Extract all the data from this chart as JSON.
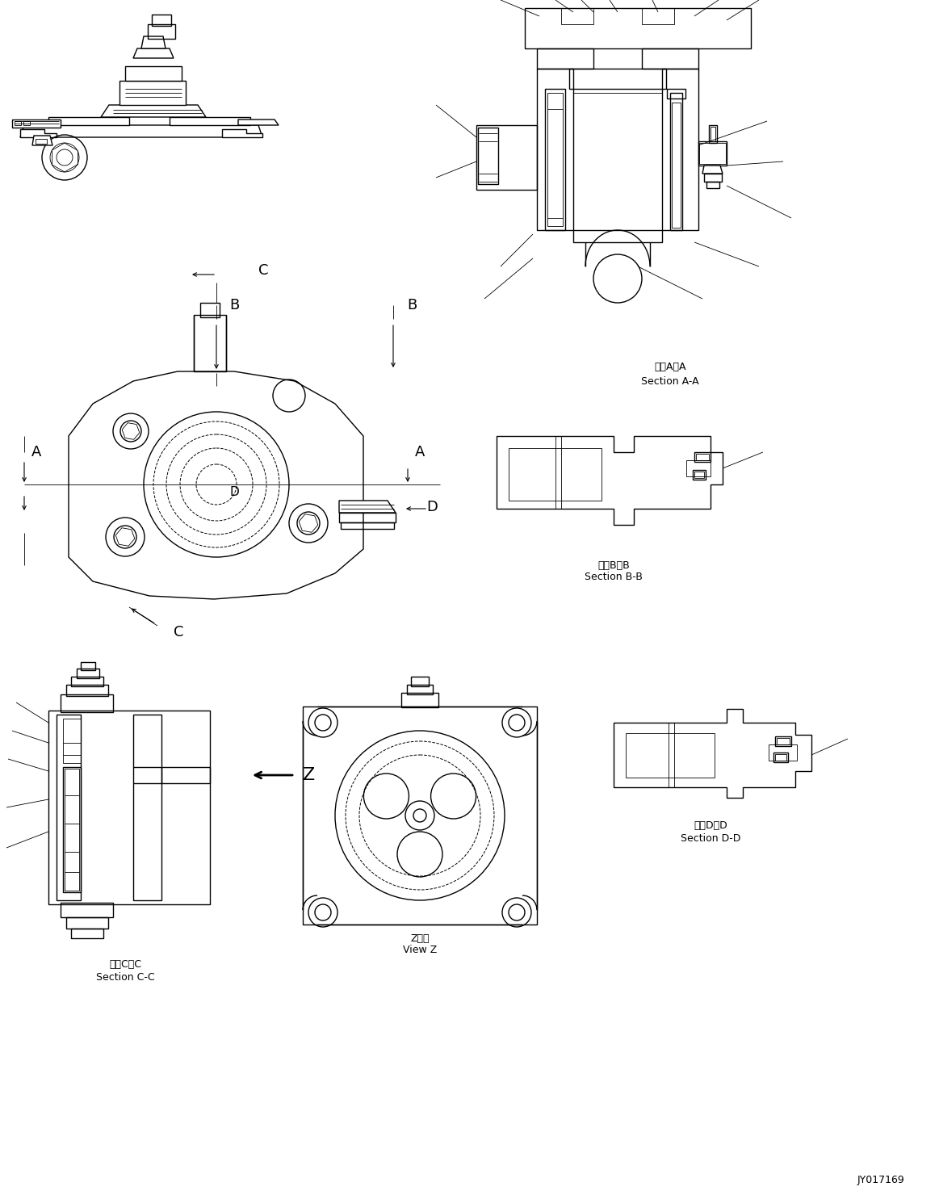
{
  "bg_color": "#ffffff",
  "lc": "#000000",
  "lw": 1.0,
  "tlw": 0.6,
  "dlw": 0.7,
  "fig_width": 11.63,
  "fig_height": 14.8,
  "title": "JY017169",
  "label_aa": "断面A－A",
  "label_aa2": "Section A-A",
  "label_bb": "断面B－B",
  "label_bb2": "Section B-B",
  "label_cc": "断面C－C",
  "label_cc2": "Section C-C",
  "label_dd": "断面D－D",
  "label_dd2": "Section D-D",
  "label_z1": "Z　視",
  "label_z2": "View Z"
}
